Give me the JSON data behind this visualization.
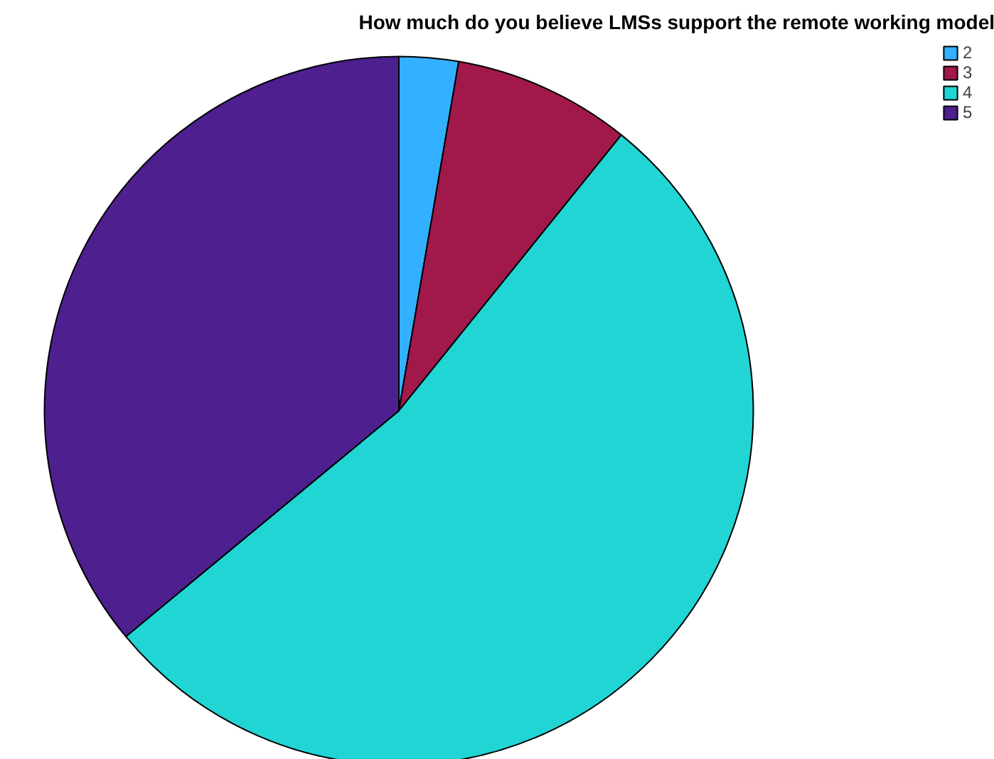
{
  "chart_data": {
    "type": "pie",
    "title": "How much do you believe LMSs support the remote working model",
    "categories": [
      "2",
      "3",
      "4",
      "5"
    ],
    "values": [
      2.7,
      8.1,
      53.2,
      36.0
    ],
    "colors": [
      "#33b0ff",
      "#a0194a",
      "#21d5d5",
      "#4e1f8f"
    ],
    "legend": "top right"
  }
}
